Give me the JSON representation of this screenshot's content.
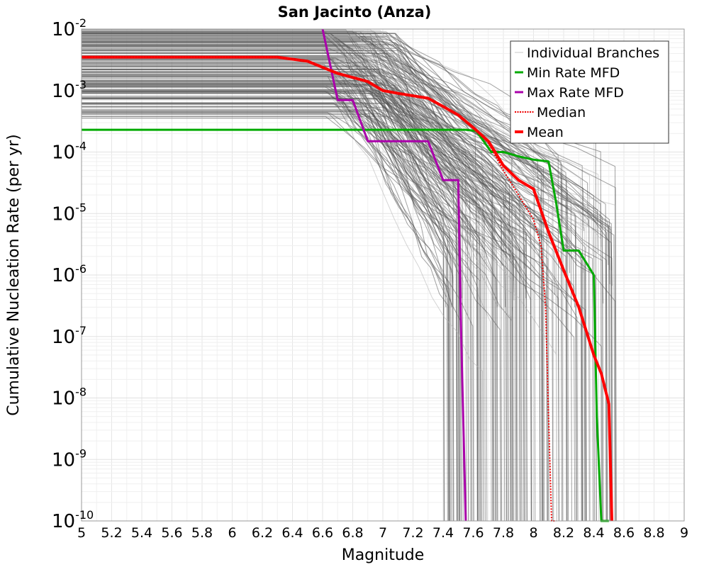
{
  "chart_data": {
    "type": "line",
    "title": "San Jacinto (Anza)",
    "xlabel": "Magnitude",
    "ylabel": "Cumulative Nucleation Rate (per yr)",
    "xlim": [
      5,
      9
    ],
    "ylim_exponent": [
      -10,
      -2
    ],
    "y_scale": "log",
    "grid": true,
    "legend_position": "top-right",
    "x_ticks": [
      "5",
      "5.2",
      "5.4",
      "5.6",
      "5.8",
      "6",
      "6.2",
      "6.4",
      "6.6",
      "6.8",
      "7",
      "7.2",
      "7.4",
      "7.6",
      "7.8",
      "8",
      "8.2",
      "8.4",
      "8.6",
      "8.8",
      "9"
    ],
    "y_ticks": [
      {
        "base": "10",
        "exp": "-2",
        "value": 0.01
      },
      {
        "base": "10",
        "exp": "-3",
        "value": 0.001
      },
      {
        "base": "10",
        "exp": "-4",
        "value": 0.0001
      },
      {
        "base": "10",
        "exp": "-5",
        "value": 1e-05
      },
      {
        "base": "10",
        "exp": "-6",
        "value": 1e-06
      },
      {
        "base": "10",
        "exp": "-7",
        "value": 1e-07
      },
      {
        "base": "10",
        "exp": "-8",
        "value": 1e-08
      },
      {
        "base": "10",
        "exp": "-9",
        "value": 1e-09
      },
      {
        "base": "10",
        "exp": "-10",
        "value": 1e-10
      }
    ],
    "legend": [
      {
        "label": "Individual Branches",
        "color": "#c8c8c8",
        "style": "solid",
        "width": 1
      },
      {
        "label": "Min Rate MFD",
        "color": "#00aa00",
        "style": "solid",
        "width": 3
      },
      {
        "label": "Max Rate MFD",
        "color": "#aa00aa",
        "style": "solid",
        "width": 3
      },
      {
        "label": "Median",
        "color": "#ee0000",
        "style": "dotted",
        "width": 2
      },
      {
        "label": "Mean",
        "color": "#ff0000",
        "style": "solid",
        "width": 4
      }
    ],
    "branches_band": {
      "color": "#555555",
      "plateau_low": 0.00035,
      "plateau_high": 0.01,
      "rolloff_start": 6.6,
      "max_magnitude_range": [
        7.4,
        8.55
      ]
    },
    "series": [
      {
        "name": "Min Rate MFD",
        "color": "#00aa00",
        "width": 3,
        "x": [
          5,
          7.55,
          7.62,
          7.72,
          7.8,
          7.9,
          8.0,
          8.1,
          8.15,
          8.2,
          8.3,
          8.4,
          8.42,
          8.45,
          8.5
        ],
        "y": [
          0.00023,
          0.00023,
          0.00022,
          0.0001,
          0.0001,
          8.5e-05,
          7.5e-05,
          7e-05,
          1.5e-05,
          2.5e-06,
          2.5e-06,
          1e-06,
          5e-09,
          1e-10,
          1e-10
        ]
      },
      {
        "name": "Max Rate MFD",
        "color": "#aa00aa",
        "width": 3,
        "x": [
          6.6,
          6.7,
          6.8,
          6.9,
          7.3,
          7.4,
          7.5,
          7.52,
          7.55
        ],
        "y": [
          0.01,
          0.0007,
          0.0007,
          0.00015,
          0.00015,
          3.5e-05,
          3.5e-05,
          1e-07,
          1e-10
        ]
      },
      {
        "name": "Median",
        "color": "#ee0000",
        "width": 2,
        "dash": "2,2",
        "x": [
          5,
          6.3,
          6.5,
          6.7,
          6.9,
          7.0,
          7.1,
          7.3,
          7.4,
          7.5,
          7.6,
          7.7,
          7.8,
          7.9,
          8.0,
          8.05,
          8.08,
          8.1,
          8.12,
          8.15
        ],
        "y": [
          0.0035,
          0.0035,
          0.003,
          0.0019,
          0.0014,
          0.001,
          0.0009,
          0.00075,
          0.00055,
          0.0004,
          0.00025,
          0.00014,
          5e-05,
          2e-05,
          8e-06,
          3e-06,
          3e-07,
          5e-09,
          1e-10,
          1e-10
        ]
      },
      {
        "name": "Mean",
        "color": "#ff0000",
        "width": 4,
        "x": [
          5,
          6.3,
          6.5,
          6.7,
          6.9,
          7.0,
          7.1,
          7.3,
          7.4,
          7.5,
          7.6,
          7.7,
          7.8,
          7.9,
          8.0,
          8.1,
          8.2,
          8.3,
          8.4,
          8.45,
          8.5,
          8.52
        ],
        "y": [
          0.0035,
          0.0035,
          0.003,
          0.0019,
          0.0014,
          0.001,
          0.0009,
          0.00075,
          0.00055,
          0.0004,
          0.00025,
          0.00015,
          6e-05,
          3.5e-05,
          2.5e-05,
          5e-06,
          1.2e-06,
          3e-07,
          5e-08,
          2.5e-08,
          8e-09,
          1e-10
        ]
      }
    ]
  }
}
